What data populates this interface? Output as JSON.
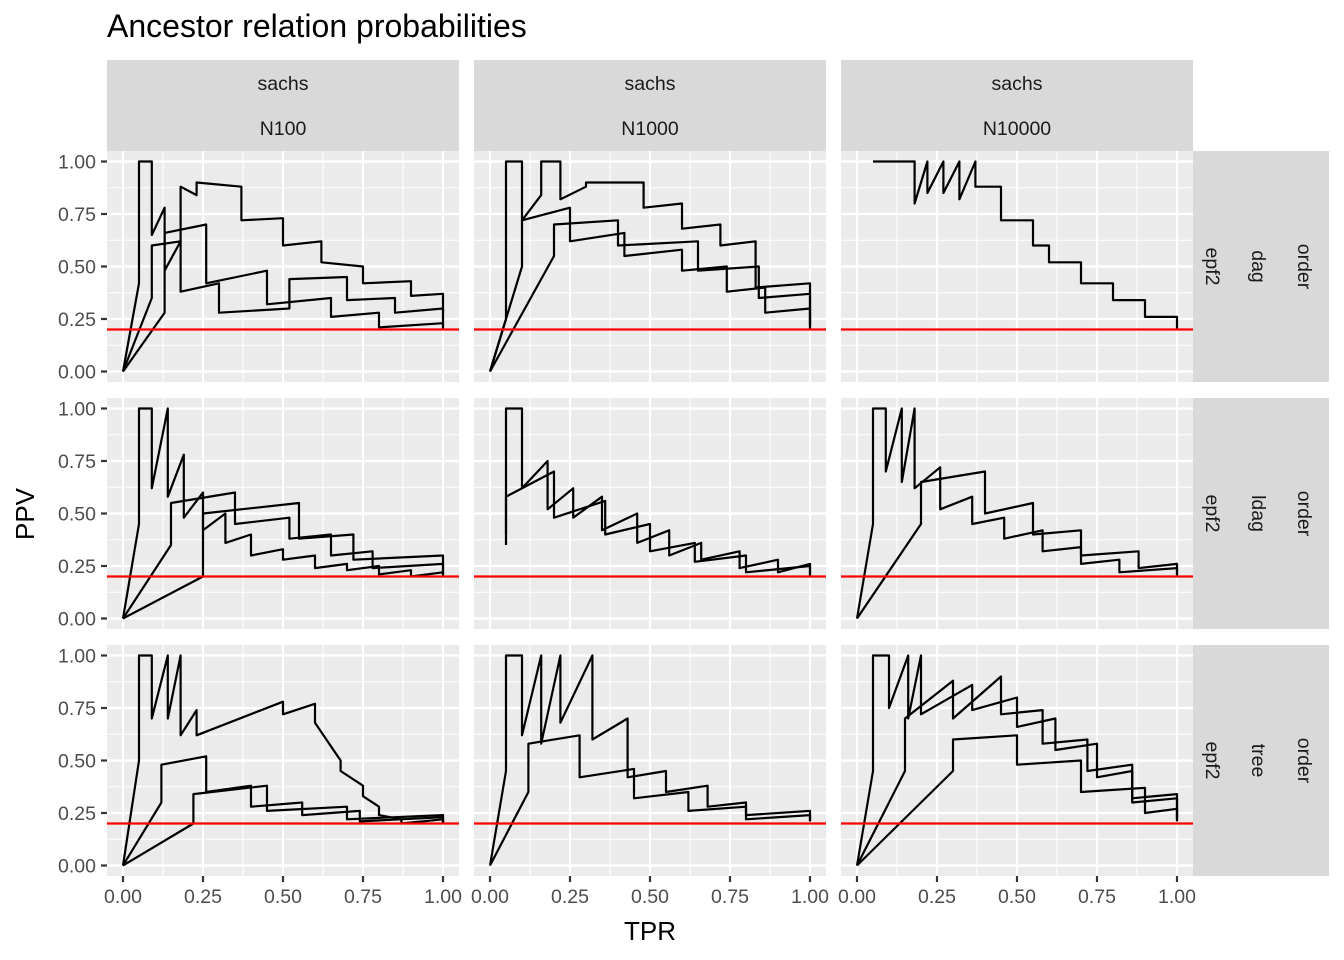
{
  "chart_data": {
    "type": "line",
    "title": "Ancestor relation probabilities",
    "xlabel": "TPR",
    "ylabel": "PPV",
    "xlim": [
      0,
      1
    ],
    "ylim": [
      0,
      1
    ],
    "x_ticks": [
      "0.00",
      "0.25",
      "0.50",
      "0.75",
      "1.00"
    ],
    "y_ticks": [
      "0.00",
      "0.25",
      "0.50",
      "0.75",
      "1.00"
    ],
    "grid": true,
    "legend": "none",
    "reference_line": {
      "y": 0.2,
      "color": "#FF0000"
    },
    "curve_color": "#000000",
    "facet_columns": [
      {
        "top": "sachs",
        "bottom": "N100"
      },
      {
        "top": "sachs",
        "bottom": "N1000"
      },
      {
        "top": "sachs",
        "bottom": "N10000"
      }
    ],
    "facet_rows": [
      {
        "labels": [
          "order",
          "dag",
          "epf2"
        ]
      },
      {
        "labels": [
          "order",
          "ldag",
          "epf2"
        ]
      },
      {
        "labels": [
          "order",
          "tree",
          "epf2"
        ]
      }
    ],
    "panels": [
      {
        "row": 0,
        "col": 0,
        "series": [
          {
            "x": [
              0,
              0.05,
              0.05,
              0.09,
              0.09,
              0.13,
              0.13,
              0.18,
              0.18,
              0.23,
              0.23,
              0.37,
              0.37,
              0.5,
              0.5,
              0.62,
              0.62,
              0.75,
              0.75,
              0.9,
              0.9,
              1.0,
              1.0
            ],
            "y": [
              0,
              0.42,
              1.0,
              1.0,
              0.65,
              0.78,
              0.48,
              0.62,
              0.88,
              0.84,
              0.9,
              0.88,
              0.72,
              0.73,
              0.6,
              0.62,
              0.52,
              0.5,
              0.42,
              0.43,
              0.36,
              0.37,
              0.28
            ]
          },
          {
            "x": [
              0,
              0.09,
              0.09,
              0.18,
              0.18,
              0.3,
              0.3,
              0.52,
              0.52,
              0.7,
              0.7,
              0.85,
              0.85,
              1.0,
              1.0
            ],
            "y": [
              0,
              0.35,
              0.6,
              0.62,
              0.38,
              0.42,
              0.28,
              0.3,
              0.44,
              0.45,
              0.34,
              0.35,
              0.28,
              0.3,
              0.22
            ]
          },
          {
            "x": [
              0,
              0.13,
              0.13,
              0.26,
              0.26,
              0.45,
              0.45,
              0.65,
              0.65,
              0.8,
              0.8,
              1.0,
              1.0
            ],
            "y": [
              0,
              0.28,
              0.66,
              0.7,
              0.42,
              0.48,
              0.32,
              0.35,
              0.26,
              0.28,
              0.21,
              0.23,
              0.2
            ]
          }
        ]
      },
      {
        "row": 0,
        "col": 1,
        "series": [
          {
            "x": [
              0,
              0.05,
              0.05,
              0.1,
              0.1,
              0.16,
              0.16,
              0.22,
              0.22,
              0.3,
              0.3,
              0.48,
              0.48,
              0.6,
              0.6,
              0.72,
              0.72,
              0.83,
              0.83,
              1.0,
              1.0
            ],
            "y": [
              0,
              0.25,
              1.0,
              1.0,
              0.72,
              0.84,
              1.0,
              1.0,
              0.82,
              0.88,
              0.9,
              0.9,
              0.78,
              0.8,
              0.68,
              0.7,
              0.6,
              0.62,
              0.4,
              0.42,
              0.2
            ]
          },
          {
            "x": [
              0,
              0.1,
              0.1,
              0.25,
              0.25,
              0.42,
              0.42,
              0.6,
              0.6,
              0.74,
              0.74,
              0.86,
              0.86,
              1.0,
              1.0
            ],
            "y": [
              0,
              0.5,
              0.72,
              0.78,
              0.62,
              0.66,
              0.55,
              0.58,
              0.48,
              0.5,
              0.38,
              0.4,
              0.28,
              0.3,
              0.22
            ]
          },
          {
            "x": [
              0,
              0.2,
              0.2,
              0.4,
              0.4,
              0.65,
              0.65,
              0.84,
              0.84,
              1.0,
              1.0
            ],
            "y": [
              0,
              0.55,
              0.7,
              0.72,
              0.6,
              0.62,
              0.48,
              0.5,
              0.35,
              0.37,
              0.22
            ]
          }
        ]
      },
      {
        "row": 0,
        "col": 2,
        "series": [
          {
            "x": [
              0.05,
              0.18,
              0.18,
              0.22,
              0.22,
              0.27,
              0.27,
              0.32,
              0.32,
              0.37,
              0.37,
              0.45,
              0.45,
              0.55,
              0.55,
              0.6,
              0.6,
              0.7,
              0.7,
              0.8,
              0.8,
              0.9,
              0.9,
              1.0,
              1.0
            ],
            "y": [
              1.0,
              1.0,
              0.8,
              1.0,
              0.85,
              1.0,
              0.85,
              1.0,
              0.82,
              1.0,
              0.88,
              0.88,
              0.72,
              0.72,
              0.6,
              0.6,
              0.52,
              0.52,
              0.42,
              0.42,
              0.34,
              0.34,
              0.26,
              0.26,
              0.2
            ]
          }
        ]
      },
      {
        "row": 1,
        "col": 0,
        "series": [
          {
            "x": [
              0,
              0.05,
              0.05,
              0.09,
              0.09,
              0.14,
              0.14,
              0.19,
              0.19,
              0.25,
              0.25,
              0.32,
              0.32,
              0.4,
              0.4,
              0.5,
              0.5,
              0.6,
              0.6,
              0.7,
              0.7,
              0.8,
              0.8,
              0.9,
              0.9,
              1.0,
              1.0
            ],
            "y": [
              0,
              0.45,
              1.0,
              1.0,
              0.62,
              1.0,
              0.58,
              0.78,
              0.48,
              0.6,
              0.42,
              0.5,
              0.36,
              0.4,
              0.3,
              0.33,
              0.28,
              0.3,
              0.24,
              0.26,
              0.23,
              0.25,
              0.21,
              0.23,
              0.2,
              0.22,
              0.2
            ]
          },
          {
            "x": [
              0,
              0.15,
              0.15,
              0.35,
              0.35,
              0.52,
              0.52,
              0.65,
              0.65,
              0.78,
              0.78,
              1.0,
              1.0
            ],
            "y": [
              0,
              0.35,
              0.55,
              0.6,
              0.45,
              0.48,
              0.38,
              0.4,
              0.3,
              0.32,
              0.24,
              0.26,
              0.21
            ]
          },
          {
            "x": [
              0,
              0.25,
              0.25,
              0.55,
              0.55,
              0.72,
              0.72,
              1.0,
              1.0
            ],
            "y": [
              0,
              0.2,
              0.5,
              0.55,
              0.38,
              0.4,
              0.28,
              0.3,
              0.22
            ]
          }
        ]
      },
      {
        "row": 1,
        "col": 1,
        "series": [
          {
            "x": [
              0.05,
              0.05,
              0.1,
              0.1,
              0.18,
              0.18,
              0.26,
              0.26,
              0.35,
              0.35,
              0.46,
              0.46,
              0.56,
              0.56,
              0.66,
              0.66,
              0.78,
              0.78,
              0.9,
              0.9,
              1.0,
              1.0
            ],
            "y": [
              0.35,
              1.0,
              1.0,
              0.62,
              0.75,
              0.52,
              0.62,
              0.48,
              0.58,
              0.42,
              0.5,
              0.36,
              0.42,
              0.3,
              0.36,
              0.28,
              0.32,
              0.24,
              0.28,
              0.22,
              0.26,
              0.2
            ]
          },
          {
            "x": [
              0.05,
              0.05,
              0.2,
              0.2,
              0.36,
              0.36,
              0.5,
              0.5,
              0.64,
              0.64,
              0.8,
              0.8,
              1.0,
              1.0
            ],
            "y": [
              0.4,
              0.58,
              0.7,
              0.48,
              0.56,
              0.4,
              0.45,
              0.32,
              0.36,
              0.27,
              0.3,
              0.22,
              0.25,
              0.2
            ]
          }
        ]
      },
      {
        "row": 1,
        "col": 2,
        "series": [
          {
            "x": [
              0,
              0.05,
              0.05,
              0.09,
              0.09,
              0.14,
              0.14,
              0.18,
              0.18,
              0.26,
              0.26,
              0.36,
              0.36,
              0.46,
              0.46,
              0.58,
              0.58,
              0.7,
              0.7,
              0.82,
              0.82,
              1.0,
              1.0
            ],
            "y": [
              0,
              0.45,
              1.0,
              1.0,
              0.7,
              1.0,
              0.65,
              1.0,
              0.62,
              0.72,
              0.52,
              0.58,
              0.45,
              0.48,
              0.38,
              0.42,
              0.32,
              0.34,
              0.26,
              0.28,
              0.22,
              0.24,
              0.2
            ]
          },
          {
            "x": [
              0,
              0.2,
              0.2,
              0.4,
              0.4,
              0.55,
              0.55,
              0.7,
              0.7,
              0.88,
              0.88,
              1.0,
              1.0
            ],
            "y": [
              0,
              0.45,
              0.65,
              0.7,
              0.5,
              0.55,
              0.4,
              0.42,
              0.3,
              0.32,
              0.24,
              0.26,
              0.21
            ]
          }
        ]
      },
      {
        "row": 2,
        "col": 0,
        "series": [
          {
            "x": [
              0,
              0.05,
              0.05,
              0.09,
              0.09,
              0.14,
              0.14,
              0.18,
              0.18,
              0.23,
              0.23,
              0.5,
              0.5,
              0.6,
              0.6,
              0.68,
              0.68,
              0.75,
              0.75,
              0.8,
              0.8,
              0.87,
              0.87,
              1.0,
              1.0
            ],
            "y": [
              0,
              0.5,
              1.0,
              1.0,
              0.7,
              1.0,
              0.7,
              1.0,
              0.62,
              0.74,
              0.62,
              0.78,
              0.72,
              0.77,
              0.68,
              0.5,
              0.45,
              0.38,
              0.33,
              0.28,
              0.24,
              0.22,
              0.2,
              0.22,
              0.2
            ]
          },
          {
            "x": [
              0,
              0.12,
              0.12,
              0.26,
              0.26,
              0.4,
              0.4,
              0.56,
              0.56,
              0.74,
              0.74,
              1.0,
              1.0
            ],
            "y": [
              0,
              0.3,
              0.48,
              0.52,
              0.35,
              0.38,
              0.28,
              0.3,
              0.24,
              0.26,
              0.21,
              0.23,
              0.2
            ]
          },
          {
            "x": [
              0,
              0.22,
              0.22,
              0.45,
              0.45,
              0.7,
              0.7,
              1.0,
              1.0
            ],
            "y": [
              0,
              0.2,
              0.34,
              0.38,
              0.26,
              0.28,
              0.22,
              0.24,
              0.2
            ]
          }
        ]
      },
      {
        "row": 2,
        "col": 1,
        "series": [
          {
            "x": [
              0,
              0.05,
              0.05,
              0.1,
              0.1,
              0.16,
              0.16,
              0.22,
              0.22,
              0.32,
              0.32,
              0.43,
              0.43,
              0.55,
              0.55,
              0.68,
              0.68,
              0.8,
              0.8,
              1.0,
              1.0
            ],
            "y": [
              0,
              0.45,
              1.0,
              1.0,
              0.62,
              1.0,
              0.58,
              1.0,
              0.68,
              1.0,
              0.6,
              0.7,
              0.42,
              0.45,
              0.35,
              0.38,
              0.28,
              0.3,
              0.24,
              0.26,
              0.21
            ]
          },
          {
            "x": [
              0,
              0.12,
              0.12,
              0.28,
              0.28,
              0.45,
              0.45,
              0.62,
              0.62,
              0.8,
              0.8,
              1.0,
              1.0
            ],
            "y": [
              0,
              0.35,
              0.58,
              0.62,
              0.42,
              0.46,
              0.32,
              0.35,
              0.26,
              0.28,
              0.22,
              0.24,
              0.21
            ]
          }
        ]
      },
      {
        "row": 2,
        "col": 2,
        "series": [
          {
            "x": [
              0,
              0.05,
              0.05,
              0.1,
              0.1,
              0.16,
              0.16,
              0.2,
              0.2,
              0.36,
              0.36,
              0.5,
              0.5,
              0.62,
              0.62,
              0.75,
              0.75,
              0.86,
              0.86,
              1.0,
              1.0
            ],
            "y": [
              0,
              0.45,
              1.0,
              1.0,
              0.75,
              1.0,
              0.7,
              1.0,
              0.72,
              0.86,
              0.74,
              0.8,
              0.66,
              0.7,
              0.55,
              0.58,
              0.42,
              0.45,
              0.3,
              0.32,
              0.22
            ]
          },
          {
            "x": [
              0,
              0.15,
              0.15,
              0.3,
              0.3,
              0.45,
              0.45,
              0.58,
              0.58,
              0.72,
              0.72,
              0.86,
              0.86,
              1.0,
              1.0
            ],
            "y": [
              0,
              0.45,
              0.7,
              0.88,
              0.7,
              0.9,
              0.72,
              0.74,
              0.58,
              0.6,
              0.45,
              0.48,
              0.32,
              0.34,
              0.22
            ]
          },
          {
            "x": [
              0,
              0.3,
              0.3,
              0.5,
              0.5,
              0.7,
              0.7,
              0.9,
              0.9,
              1.0,
              1.0
            ],
            "y": [
              0,
              0.45,
              0.6,
              0.62,
              0.48,
              0.5,
              0.35,
              0.37,
              0.25,
              0.27,
              0.21
            ]
          }
        ]
      }
    ]
  }
}
